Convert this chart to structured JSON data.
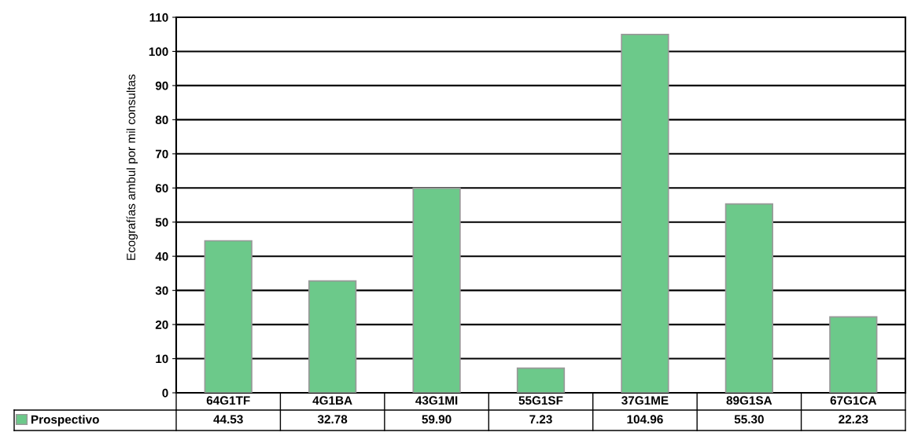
{
  "chart_data": {
    "type": "bar",
    "ylabel": "Ecografías ambul por mil consultas",
    "categories": [
      "64G1TF",
      "4G1BA",
      "43G1MI",
      "55G1SF",
      "37G1ME",
      "89G1SA",
      "67G1CA"
    ],
    "series": [
      {
        "name": "Prospectivo",
        "color": "#6cc98a",
        "values": [
          44.53,
          32.78,
          59.9,
          7.23,
          104.96,
          55.3,
          22.23
        ],
        "value_labels": [
          "44.53",
          "32.78",
          "59.90",
          "7.23",
          "104.96",
          "55.30",
          "22.23"
        ]
      }
    ],
    "ylim": [
      0,
      110
    ],
    "yticks": [
      0,
      10,
      20,
      30,
      40,
      50,
      60,
      70,
      80,
      90,
      100,
      110
    ],
    "grid": "y",
    "legend": "bottom"
  }
}
